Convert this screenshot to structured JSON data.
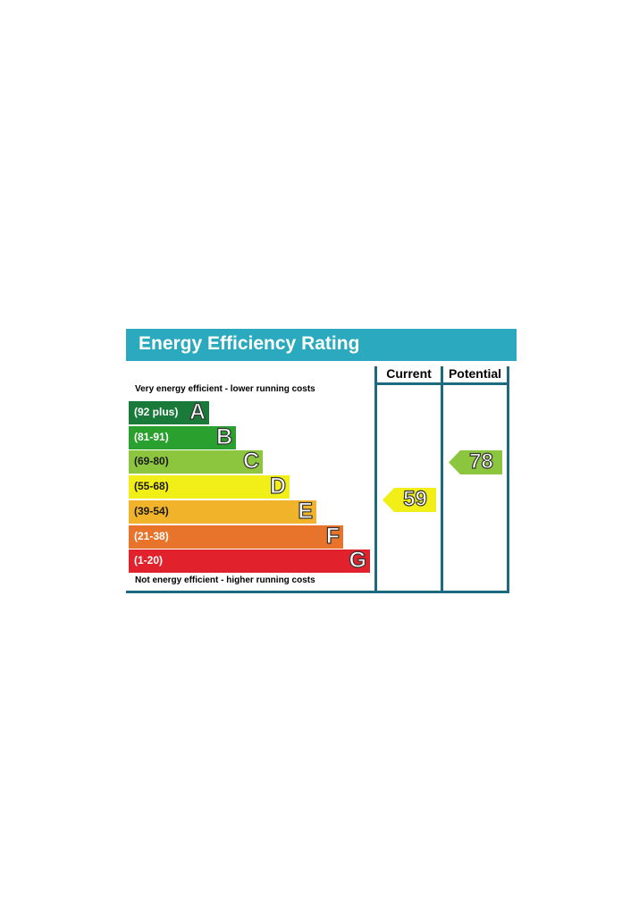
{
  "title": "Energy Efficiency Rating",
  "columns": {
    "current": "Current",
    "potential": "Potential"
  },
  "notes": {
    "top": "Very energy efficient - lower running costs",
    "bottom": "Not energy efficient - higher running costs"
  },
  "chart_data": {
    "type": "bar",
    "bands": [
      {
        "letter": "A",
        "range": "(92 plus)",
        "color": "#1a7a3a"
      },
      {
        "letter": "B",
        "range": "(81-91)",
        "color": "#2aa02e"
      },
      {
        "letter": "C",
        "range": "(69-80)",
        "color": "#8cc63e"
      },
      {
        "letter": "D",
        "range": "(55-68)",
        "color": "#f2ee17"
      },
      {
        "letter": "E",
        "range": "(39-54)",
        "color": "#f0b32a"
      },
      {
        "letter": "F",
        "range": "(21-38)",
        "color": "#e8732b"
      },
      {
        "letter": "G",
        "range": "(1-20)",
        "color": "#e1222d"
      }
    ],
    "current": {
      "value": "59",
      "band": "D",
      "color": "#f2ee17"
    },
    "potential": {
      "value": "78",
      "band": "C",
      "color": "#8cc63e"
    }
  }
}
